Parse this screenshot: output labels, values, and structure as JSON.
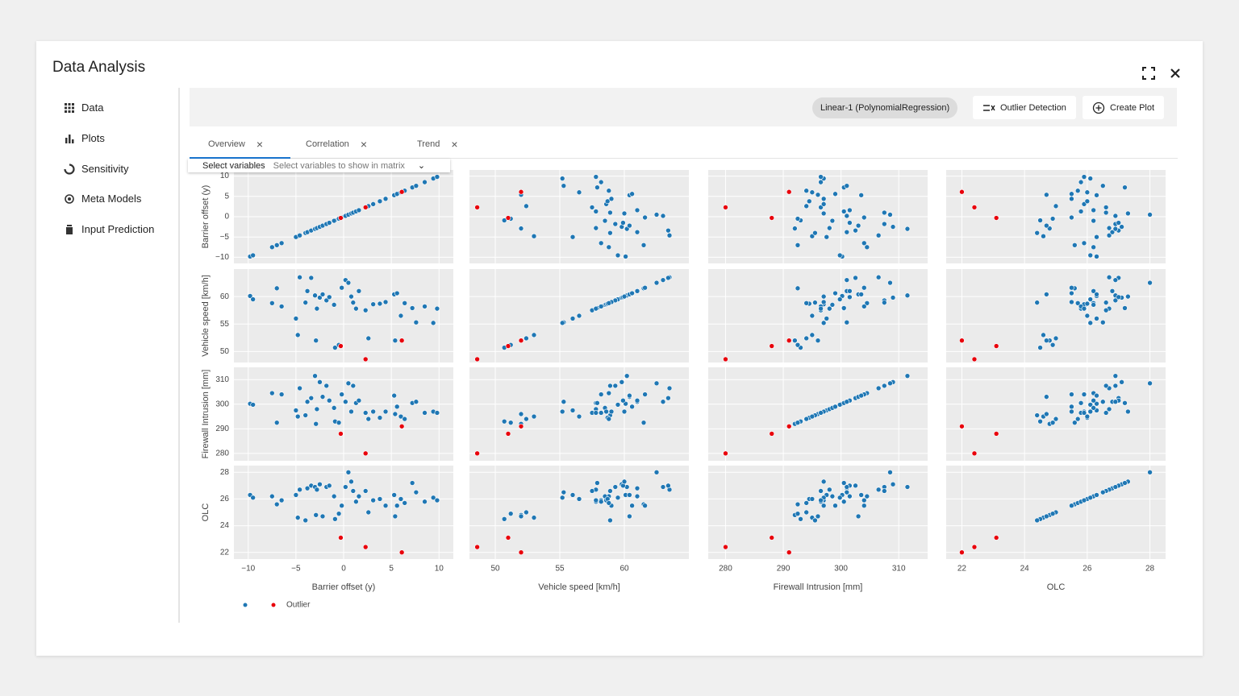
{
  "dialog": {
    "title": "Data Analysis"
  },
  "sidebar": {
    "items": [
      "Data",
      "Plots",
      "Sensitivity",
      "Meta Models",
      "Input Prediction"
    ]
  },
  "toolbar": {
    "chip": "Linear-1 (PolynomialRegression)",
    "buttons": [
      "Outlier Detection",
      "Create Plot"
    ]
  },
  "tabs": [
    "Overview",
    "Correlation",
    "Trend"
  ],
  "select": {
    "label": "Select variables",
    "placeholder": "Select variables to show in matrix"
  },
  "chart_data": {
    "type": "scatter_matrix",
    "variables": [
      {
        "name": "Barrier offset (y)",
        "lim": [
          -11.5,
          11.5
        ],
        "ticks": [
          {
            "value": -10,
            "label": "−10"
          },
          {
            "value": -5,
            "label": "−5"
          },
          0,
          5,
          10
        ]
      },
      {
        "name": "Vehicle speed [km/h]",
        "lim": [
          48,
          65
        ],
        "ticks": [
          50,
          55,
          60
        ]
      },
      {
        "name": "Firewall Intrusion [mm]",
        "lim": [
          277,
          315
        ],
        "ticks": [
          280,
          290,
          300,
          310
        ]
      },
      {
        "name": "OLC",
        "lim": [
          21.5,
          28.5
        ],
        "ticks": [
          22,
          24,
          26,
          28
        ]
      }
    ],
    "grid": true,
    "series": [
      {
        "color": "#1f77b4",
        "values": [
          [
            -4.8,
            -2.9,
            -0.9,
            2.6,
            5.4,
            -0.5,
            -9.8,
            -9.5,
            -7.5,
            -7.0,
            -6.5,
            -5.0,
            -4.6,
            -4.0,
            -3.8,
            -3.4,
            -3.0,
            -2.8,
            -2.5,
            -2.2,
            -1.8,
            -1.5,
            -1.0,
            -0.2,
            0.2,
            0.5,
            0.8,
            1.0,
            1.3,
            1.6,
            2.3,
            3.1,
            3.8,
            4.4,
            5.3,
            5.6,
            6.0,
            6.4,
            7.2,
            7.6,
            8.5,
            9.4,
            9.8
          ],
          [
            53.0,
            52.0,
            50.7,
            52.4,
            52.0,
            51.2,
            60.1,
            59.5,
            58.8,
            61.5,
            58.2,
            56.0,
            63.5,
            58.9,
            61.0,
            63.4,
            60.2,
            57.8,
            59.8,
            60.4,
            59.3,
            59.9,
            58.5,
            61.6,
            63.0,
            62.5,
            60.0,
            58.9,
            57.8,
            61.0,
            57.5,
            58.6,
            58.7,
            59.0,
            60.4,
            60.6,
            56.5,
            58.8,
            57.9,
            55.3,
            58.2,
            55.2,
            57.8
          ],
          [
            295,
            292,
            293,
            294,
            296,
            292.5,
            300.2,
            299.8,
            304.5,
            292.5,
            304.0,
            297.5,
            306.5,
            295.5,
            301.0,
            302.5,
            311.5,
            298.0,
            309.0,
            303.0,
            307.5,
            301.5,
            298.5,
            304.0,
            301.0,
            308.5,
            297.0,
            307.5,
            300.5,
            301.5,
            296.5,
            297.0,
            294.5,
            297.0,
            303.5,
            299.0,
            295.0,
            294.0,
            300.5,
            301.0,
            296.5,
            297.0,
            296.5
          ],
          [
            24.6,
            24.8,
            24.5,
            25.0,
            24.7,
            24.9,
            26.3,
            26.1,
            26.2,
            25.6,
            25.9,
            26.3,
            26.7,
            24.4,
            26.8,
            27.0,
            26.9,
            26.7,
            27.1,
            24.7,
            26.9,
            27.0,
            26.2,
            25.5,
            26.9,
            28.0,
            27.3,
            26.6,
            25.8,
            26.2,
            26.6,
            25.9,
            26.0,
            25.5,
            26.3,
            25.5,
            26.0,
            25.7,
            27.2,
            26.5,
            25.8,
            26.1,
            25.9
          ]
        ]
      },
      {
        "name": "Outlier",
        "color": "#e8000b",
        "values": [
          [
            6.1,
            2.3,
            -0.3
          ],
          [
            52.0,
            48.6,
            51.0
          ],
          [
            291,
            280,
            288
          ],
          [
            22.0,
            22.4,
            23.1
          ]
        ]
      }
    ]
  }
}
